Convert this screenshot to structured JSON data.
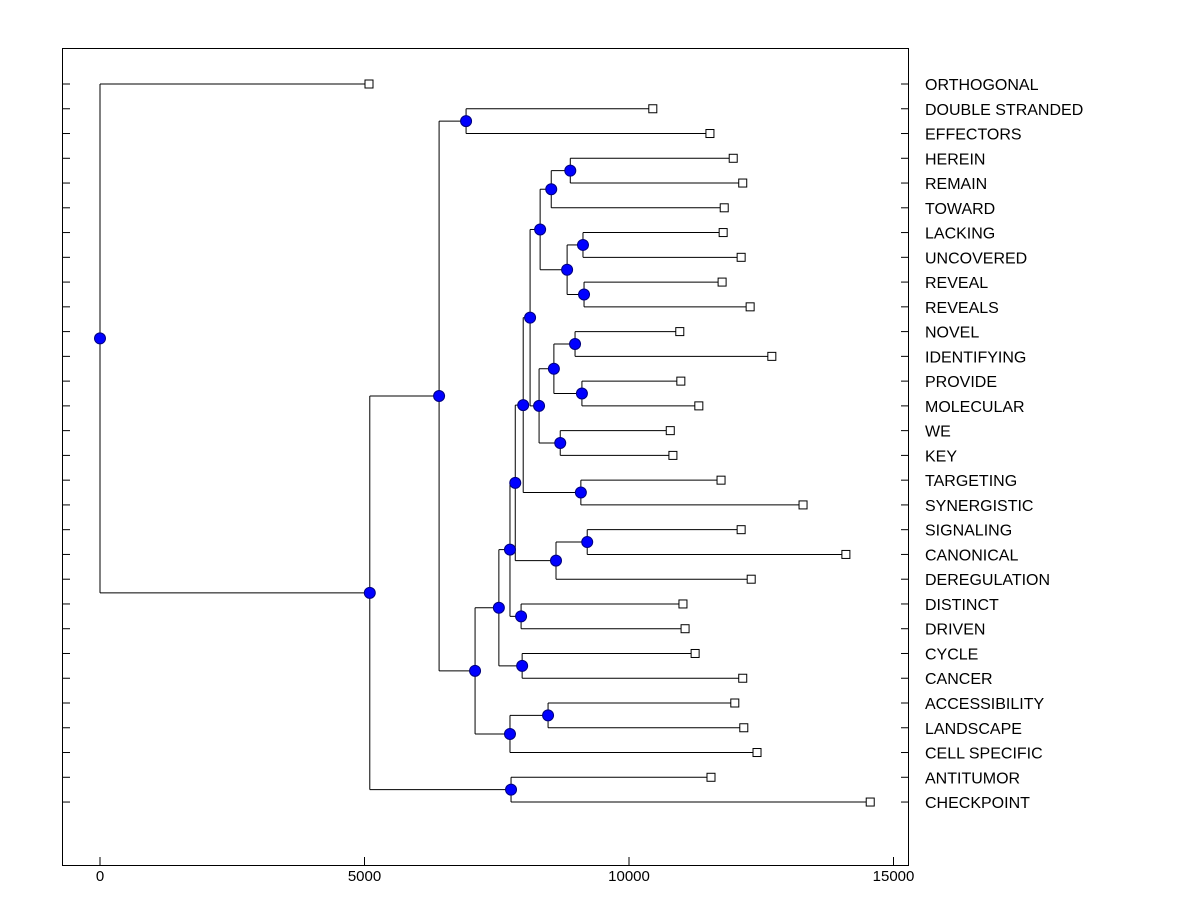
{
  "chart_data": {
    "type": "dendrogram",
    "title": "",
    "xlabel": "",
    "ylabel": "",
    "xlim": [
      -700,
      15300
    ],
    "xticks": [
      0,
      5000,
      10000,
      15000
    ],
    "xtick_labels": [
      "0",
      "5000",
      "10000",
      "15000"
    ],
    "grid": false,
    "colors": {
      "node": "#0000ff",
      "node_outline": "#000080",
      "line": "#000000",
      "leaf_fill": "#ffffff"
    },
    "tree": {
      "h": 0,
      "c": [
        {
          "label": "ORTHOGONAL",
          "h": 5085
        },
        {
          "h": 5100,
          "c": [
            {
              "h": 6410,
              "c": [
                {
                  "h": 6920,
                  "c": [
                    {
                      "label": "DOUBLE STRANDED",
                      "h": 10450
                    },
                    {
                      "label": "EFFECTORS",
                      "h": 11530
                    }
                  ]
                },
                {
                  "h": 7090,
                  "c": [
                    {
                      "h": 7540,
                      "c": [
                        {
                          "h": 7750,
                          "c": [
                            {
                              "h": 7850,
                              "c": [
                                {
                                  "h": 8000,
                                  "c": [
                                    {
                                      "h": 8130,
                                      "c": [
                                        {
                                          "h": 8320,
                                          "c": [
                                            {
                                              "h": 8530,
                                              "c": [
                                                {
                                                  "h": 8890,
                                                  "c": [
                                                    {
                                                      "label": "HEREIN",
                                                      "h": 11970
                                                    },
                                                    {
                                                      "label": "REMAIN",
                                                      "h": 12150
                                                    }
                                                  ]
                                                },
                                                {
                                                  "label": "TOWARD",
                                                  "h": 11800
                                                }
                                              ]
                                            },
                                            {
                                              "h": 8830,
                                              "c": [
                                                {
                                                  "h": 9130,
                                                  "c": [
                                                    {
                                                      "label": "LACKING",
                                                      "h": 11780
                                                    },
                                                    {
                                                      "label": "UNCOVERED",
                                                      "h": 12120
                                                    }
                                                  ]
                                                },
                                                {
                                                  "h": 9150,
                                                  "c": [
                                                    {
                                                      "label": "REVEAL",
                                                      "h": 11760
                                                    },
                                                    {
                                                      "label": "REVEALS",
                                                      "h": 12290
                                                    }
                                                  ]
                                                }
                                              ]
                                            }
                                          ]
                                        },
                                        {
                                          "h": 8300,
                                          "c": [
                                            {
                                              "h": 8580,
                                              "c": [
                                                {
                                                  "h": 8980,
                                                  "c": [
                                                    {
                                                      "label": "NOVEL",
                                                      "h": 10960
                                                    },
                                                    {
                                                      "label": "IDENTIFYING",
                                                      "h": 12700
                                                    }
                                                  ]
                                                },
                                                {
                                                  "h": 9110,
                                                  "c": [
                                                    {
                                                      "label": "PROVIDE",
                                                      "h": 10980
                                                    },
                                                    {
                                                      "label": "MOLECULAR",
                                                      "h": 11320
                                                    }
                                                  ]
                                                }
                                              ]
                                            },
                                            {
                                              "h": 8700,
                                              "c": [
                                                {
                                                  "label": "WE",
                                                  "h": 10780
                                                },
                                                {
                                                  "label": "KEY",
                                                  "h": 10830
                                                }
                                              ]
                                            }
                                          ]
                                        }
                                      ]
                                    },
                                    {
                                      "h": 9090,
                                      "c": [
                                        {
                                          "label": "TARGETING",
                                          "h": 11740
                                        },
                                        {
                                          "label": "SYNERGISTIC",
                                          "h": 13290
                                        }
                                      ]
                                    }
                                  ]
                                },
                                {
                                  "h": 8620,
                                  "c": [
                                    {
                                      "h": 9210,
                                      "c": [
                                        {
                                          "label": "SIGNALING",
                                          "h": 12120
                                        },
                                        {
                                          "label": "CANONICAL",
                                          "h": 14100
                                        }
                                      ]
                                    },
                                    {
                                      "label": "DEREGULATION",
                                      "h": 12310
                                    }
                                  ]
                                }
                              ]
                            },
                            {
                              "h": 7960,
                              "c": [
                                {
                                  "label": "DISTINCT",
                                  "h": 11020
                                },
                                {
                                  "label": "DRIVEN",
                                  "h": 11060
                                }
                              ]
                            }
                          ]
                        },
                        {
                          "h": 7980,
                          "c": [
                            {
                              "label": "CYCLE",
                              "h": 11250
                            },
                            {
                              "label": "CANCER",
                              "h": 12150
                            }
                          ]
                        }
                      ]
                    },
                    {
                      "h": 7750,
                      "c": [
                        {
                          "h": 8470,
                          "c": [
                            {
                              "label": "ACCESSIBILITY",
                              "h": 12000
                            },
                            {
                              "label": "LANDSCAPE",
                              "h": 12170
                            }
                          ]
                        },
                        {
                          "label": "CELL SPECIFIC",
                          "h": 12420
                        }
                      ]
                    }
                  ]
                }
              ]
            },
            {
              "h": 7770,
              "c": [
                {
                  "label": "ANTITUMOR",
                  "h": 11550
                },
                {
                  "label": "CHECKPOINT",
                  "h": 14560
                }
              ]
            }
          ]
        }
      ]
    }
  }
}
